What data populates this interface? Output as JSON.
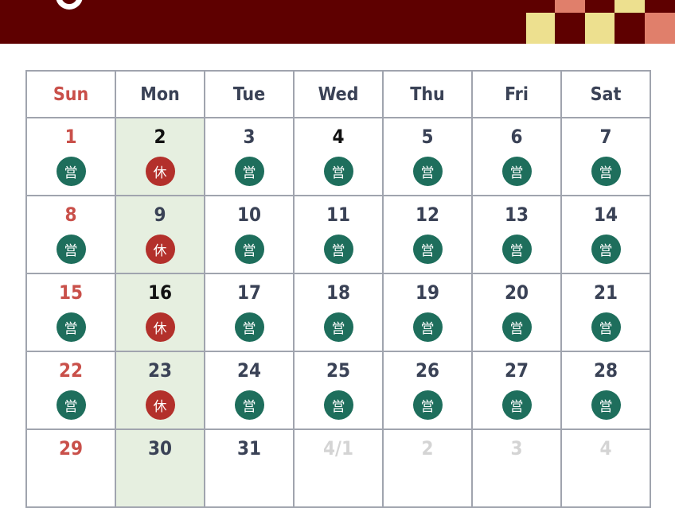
{
  "colors": {
    "banner": "#5e0000",
    "open": "#1e6e5c",
    "closed": "#b3302b",
    "sunday": "#c9504a",
    "monday_bg": "#e6efe0",
    "check_yellow": "#ede08f",
    "check_salmon": "#e07f6b"
  },
  "weekdays": [
    "Sun",
    "Mon",
    "Tue",
    "Wed",
    "Thu",
    "Fri",
    "Sat"
  ],
  "badges": {
    "open": "営",
    "closed": "休"
  },
  "weeks": [
    [
      {
        "d": "1",
        "s": "open"
      },
      {
        "d": "2",
        "s": "closed",
        "bold": true
      },
      {
        "d": "3",
        "s": "open"
      },
      {
        "d": "4",
        "s": "open",
        "bold": true
      },
      {
        "d": "5",
        "s": "open"
      },
      {
        "d": "6",
        "s": "open"
      },
      {
        "d": "7",
        "s": "open"
      }
    ],
    [
      {
        "d": "8",
        "s": "open"
      },
      {
        "d": "9",
        "s": "closed"
      },
      {
        "d": "10",
        "s": "open"
      },
      {
        "d": "11",
        "s": "open"
      },
      {
        "d": "12",
        "s": "open"
      },
      {
        "d": "13",
        "s": "open"
      },
      {
        "d": "14",
        "s": "open"
      }
    ],
    [
      {
        "d": "15",
        "s": "open"
      },
      {
        "d": "16",
        "s": "closed",
        "bold": true
      },
      {
        "d": "17",
        "s": "open"
      },
      {
        "d": "18",
        "s": "open"
      },
      {
        "d": "19",
        "s": "open"
      },
      {
        "d": "20",
        "s": "open"
      },
      {
        "d": "21",
        "s": "open"
      }
    ],
    [
      {
        "d": "22",
        "s": "open"
      },
      {
        "d": "23",
        "s": "closed"
      },
      {
        "d": "24",
        "s": "open"
      },
      {
        "d": "25",
        "s": "open"
      },
      {
        "d": "26",
        "s": "open"
      },
      {
        "d": "27",
        "s": "open"
      },
      {
        "d": "28",
        "s": "open"
      }
    ],
    [
      {
        "d": "29"
      },
      {
        "d": "30"
      },
      {
        "d": "31"
      },
      {
        "d": "4/1",
        "other": true
      },
      {
        "d": "2",
        "other": true
      },
      {
        "d": "3",
        "other": true
      },
      {
        "d": "4",
        "other": true
      }
    ]
  ]
}
